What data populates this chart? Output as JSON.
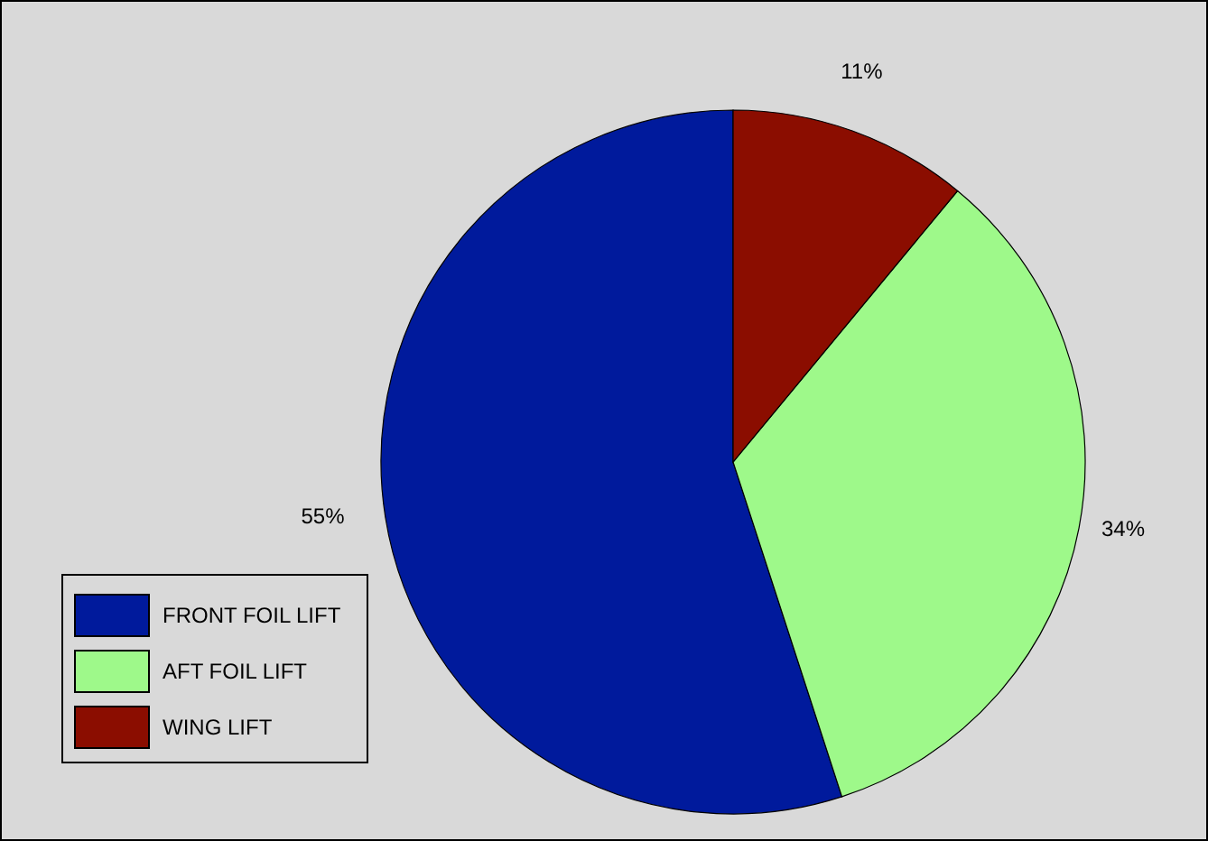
{
  "chart_data": {
    "type": "pie",
    "categories": [
      "FRONT FOIL LIFT",
      "AFT FOIL LIFT",
      "WING LIFT"
    ],
    "values": [
      55,
      34,
      11
    ],
    "colors": [
      "#001a9c",
      "#9ef98a",
      "#8b0d00"
    ],
    "value_labels": [
      "55%",
      "34%",
      "11%"
    ],
    "legend": "bottom left"
  }
}
